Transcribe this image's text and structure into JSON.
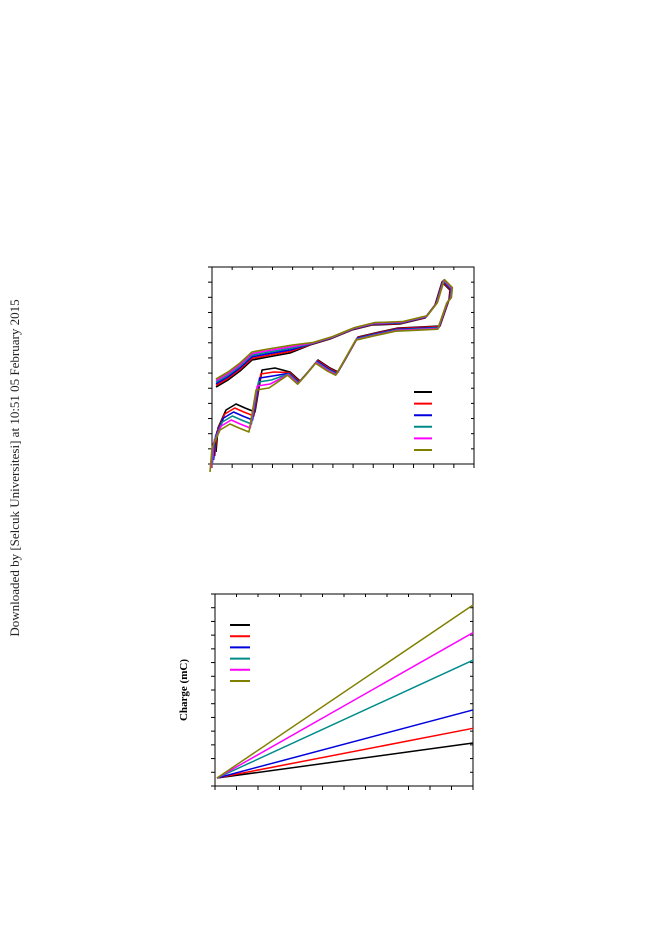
{
  "watermark": {
    "text": "Downloaded by [Selcuk Universitesi] at 10:51 05 February 2015"
  },
  "chart_data": [
    {
      "type": "line",
      "title": "",
      "xlabel": "",
      "ylabel": "",
      "legend_position": "bottom-right",
      "grid": false,
      "colors": [
        "#000000",
        "#ff0000",
        "#0000dd",
        "#008b8b",
        "#ff00ff",
        "#808000"
      ],
      "series": [
        {
          "color": "#000000",
          "offset": 0.0
        },
        {
          "color": "#ff0000",
          "offset": 1.0
        },
        {
          "color": "#0000dd",
          "offset": 2.0
        },
        {
          "color": "#008b8b",
          "offset": 3.0
        },
        {
          "color": "#ff00ff",
          "offset": 4.0
        },
        {
          "color": "#808000",
          "offset": 5.0
        }
      ]
    },
    {
      "type": "line",
      "title": "",
      "xlabel": "",
      "ylabel": "Charge (mC)",
      "legend_position": "top-left",
      "grid": false,
      "xlim": [
        0,
        1
      ],
      "ylim": [
        0,
        1
      ],
      "series": [
        {
          "color": "#000000",
          "slope": 0.19
        },
        {
          "color": "#ff0000",
          "slope": 0.27
        },
        {
          "color": "#0000dd",
          "slope": 0.37
        },
        {
          "color": "#008b8b",
          "slope": 0.64
        },
        {
          "color": "#ff00ff",
          "slope": 0.79
        },
        {
          "color": "#808000",
          "slope": 0.94
        }
      ]
    }
  ]
}
